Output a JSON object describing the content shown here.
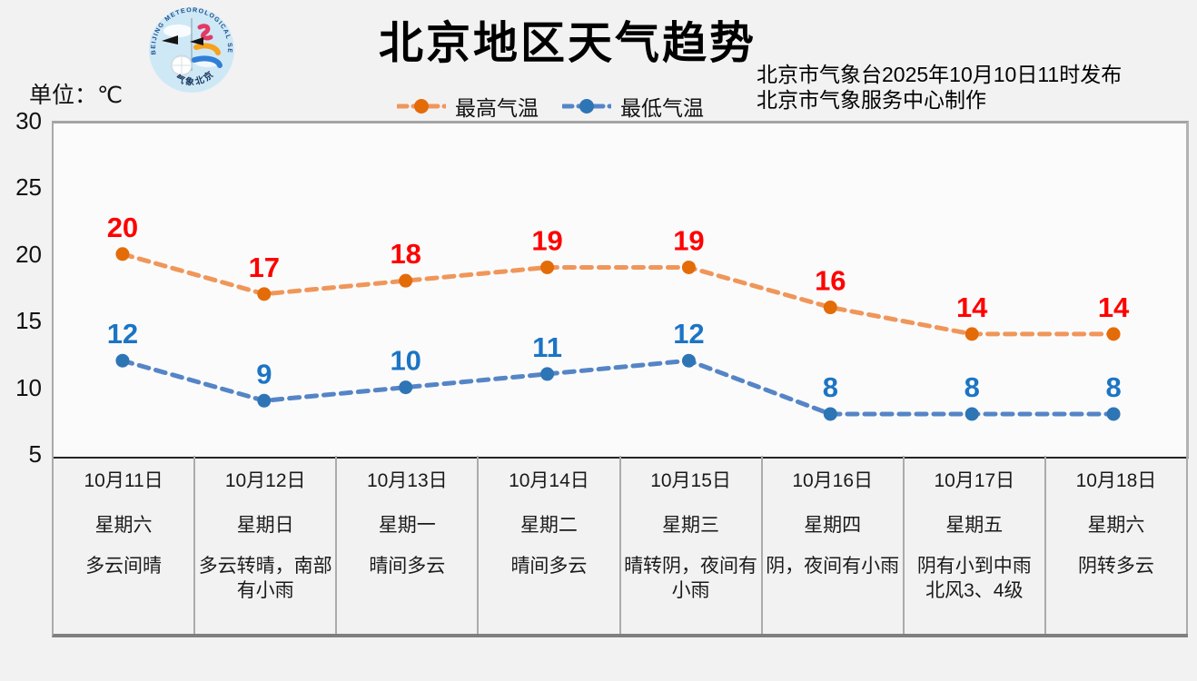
{
  "header": {
    "title": "北京地区天气趋势",
    "unit_label": "单位：℃",
    "issued_line1": "北京市气象台2025年10月10日11时发布",
    "issued_line2": "北京市气象服务中心制作",
    "logo": {
      "ring_text": "BEIJING  METEOROLOGICAL  SERVICE",
      "bottom_text": "气象北京"
    }
  },
  "legend": {
    "items": [
      {
        "label": "最高气温",
        "line": "#f0965a",
        "marker": "#e36c09"
      },
      {
        "label": "最低气温",
        "line": "#5585c6",
        "marker": "#2e75b6"
      }
    ]
  },
  "axis": {
    "yticks": [
      "30",
      "25",
      "20",
      "15",
      "10",
      "5"
    ]
  },
  "chart_data": {
    "type": "line",
    "categories": [
      "10月11日",
      "10月12日",
      "10月13日",
      "10月14日",
      "10月15日",
      "10月16日",
      "10月17日",
      "10月18日"
    ],
    "series": [
      {
        "id": "high-temp",
        "name": "最高气温",
        "values": [
          20,
          17,
          18,
          19,
          19,
          16,
          14,
          14
        ],
        "line_color": "#f0965a",
        "marker_color": "#e36c09",
        "label_color": "#ff0000"
      },
      {
        "id": "low-temp",
        "name": "最低气温",
        "values": [
          12,
          9,
          10,
          11,
          12,
          8,
          8,
          8
        ],
        "line_color": "#5585c6",
        "marker_color": "#2e75b6",
        "label_color": "#1c74c4"
      }
    ],
    "title": "北京地区天气趋势",
    "xlabel": "",
    "ylabel": "单位：℃",
    "ylim": [
      5,
      30
    ],
    "yticks": [
      30,
      25,
      20,
      15,
      10,
      5
    ],
    "grid": false,
    "line_style": "dashed",
    "legend_position": "top"
  },
  "table": {
    "columns": [
      {
        "date": "10月11日",
        "weekday": "星期六",
        "weather": "多云间晴"
      },
      {
        "date": "10月12日",
        "weekday": "星期日",
        "weather": "多云转晴，南部有小雨"
      },
      {
        "date": "10月13日",
        "weekday": "星期一",
        "weather": "晴间多云"
      },
      {
        "date": "10月14日",
        "weekday": "星期二",
        "weather": "晴间多云"
      },
      {
        "date": "10月15日",
        "weekday": "星期三",
        "weather": "晴转阴，夜间有小雨"
      },
      {
        "date": "10月16日",
        "weekday": "星期四",
        "weather": "阴，夜间有小雨"
      },
      {
        "date": "10月17日",
        "weekday": "星期五",
        "weather": "阴有小到中雨\n北风3、4级"
      },
      {
        "date": "10月18日",
        "weekday": "星期六",
        "weather": "阴转多云"
      }
    ]
  }
}
